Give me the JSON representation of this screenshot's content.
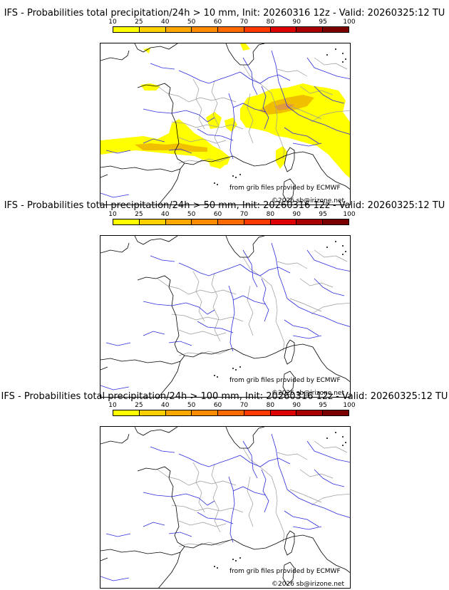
{
  "panels": [
    {
      "title": "IFS - Probabilities total precipitation/24h > 10 mm, Init: 20260316 12z - Valid: 20260325:12 TU",
      "has_precip": true
    },
    {
      "title": "IFS - Probabilities total precipitation/24h > 50 mm, Init: 20260316 12z - Valid: 20260325:12 TU",
      "has_precip": false
    },
    {
      "title": "IFS - Probabilities total precipitation/24h > 100 mm, Init: 20260316 12z - Valid: 20260325:12 TU",
      "has_precip": false
    }
  ],
  "legend": {
    "labels": [
      "10",
      "25",
      "40",
      "50",
      "60",
      "70",
      "80",
      "90",
      "95",
      "100"
    ],
    "colors": [
      "#ffff00",
      "#ffd000",
      "#ffa800",
      "#ff8c00",
      "#ff6a00",
      "#ff3a00",
      "#dd0000",
      "#a80000",
      "#7a0000"
    ]
  },
  "credits": {
    "source": "from grib files provided by ECMWF",
    "copyright": "©2026 sb@irizone.net"
  },
  "map_colors": {
    "coast": "#000000",
    "rivers": "#2b2bdc",
    "borders": "#9a9a9a",
    "precip_low": "#ffff00",
    "precip_mid": "#f0c000",
    "precip_high": "#e39a3a"
  }
}
